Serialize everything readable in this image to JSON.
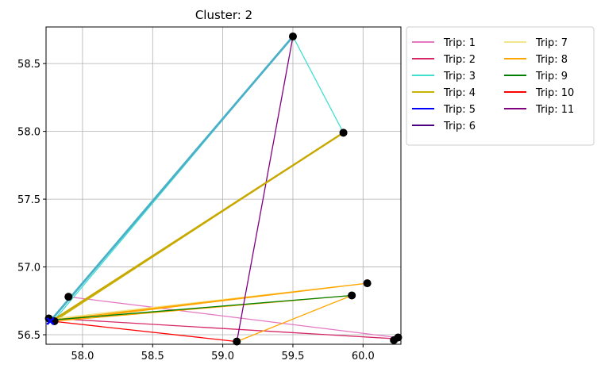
{
  "chart_data": {
    "type": "line",
    "title": "Cluster: 2",
    "xlabel": "",
    "ylabel": "",
    "xlim": [
      57.74,
      60.27
    ],
    "ylim": [
      56.43,
      58.77
    ],
    "xticks": [
      58.0,
      58.5,
      59.0,
      59.5,
      60.0
    ],
    "xtick_labels": [
      "58.0",
      "58.5",
      "59.0",
      "59.5",
      "60.0"
    ],
    "yticks": [
      56.5,
      57.0,
      57.5,
      58.0,
      58.5
    ],
    "ytick_labels": [
      "56.5",
      "57.0",
      "57.5",
      "58.0",
      "58.5"
    ],
    "grid": true,
    "legend_position": "outside-right",
    "series": [
      {
        "name": "Trip: 1",
        "color": "#e377c2",
        "x": [
          57.9,
          60.24
        ],
        "y": [
          56.78,
          56.48
        ]
      },
      {
        "name": "Trip: 2",
        "color": "#d62767",
        "x": [
          57.8,
          60.24
        ],
        "y": [
          56.62,
          56.47
        ]
      },
      {
        "name": "Trip: 3",
        "color": "#40e0d0",
        "x": [
          57.8,
          59.5,
          59.86,
          57.8
        ],
        "y": [
          56.61,
          58.7,
          57.99,
          56.61
        ]
      },
      {
        "name": "Trip: 4",
        "color": "#c8b400",
        "x": [
          57.8,
          59.86
        ],
        "y": [
          56.6,
          57.99
        ]
      },
      {
        "name": "Trip: 5",
        "color": "#0000ff",
        "x": [
          57.76,
          57.8
        ],
        "y": [
          56.6,
          56.61
        ]
      },
      {
        "name": "Trip: 6",
        "color": "#4b0082",
        "x": [
          57.78,
          57.8
        ],
        "y": [
          56.6,
          56.61
        ]
      },
      {
        "name": "Trip: 7",
        "color": "#f0e68c",
        "x": [
          57.8,
          60.03
        ],
        "y": [
          56.62,
          56.88
        ]
      },
      {
        "name": "Trip: 8",
        "color": "#ffa500",
        "x": [
          57.8,
          60.03,
          57.8,
          59.92,
          59.1
        ],
        "y": [
          56.61,
          56.88,
          56.6,
          56.79,
          56.45
        ]
      },
      {
        "name": "Trip: 9",
        "color": "#008000",
        "x": [
          57.8,
          59.92
        ],
        "y": [
          56.61,
          56.79
        ]
      },
      {
        "name": "Trip: 10",
        "color": "#ff0000",
        "x": [
          57.78,
          59.1
        ],
        "y": [
          56.6,
          56.45
        ]
      },
      {
        "name": "Trip: 11",
        "color": "#800080",
        "x": [
          59.1,
          59.5
        ],
        "y": [
          56.45,
          58.7
        ]
      },
      {
        "name": "",
        "color": "#4ab0c8",
        "x": [
          57.77,
          59.5
        ],
        "y": [
          56.6,
          58.7
        ],
        "width": 2.8
      },
      {
        "name": "",
        "color": "#c8a800",
        "x": [
          57.78,
          59.86
        ],
        "y": [
          56.6,
          57.99
        ],
        "width": 2.4
      }
    ],
    "markers": {
      "color": "#000000",
      "x": [
        59.5,
        59.86,
        57.9,
        57.76,
        57.8,
        60.03,
        59.92,
        59.1,
        60.22,
        60.25
      ],
      "y": [
        58.7,
        57.99,
        56.78,
        56.62,
        56.6,
        56.88,
        56.79,
        56.45,
        56.46,
        56.48
      ]
    },
    "start_marker": {
      "color": "#0000ff",
      "x": 57.77,
      "y": 56.6
    }
  }
}
